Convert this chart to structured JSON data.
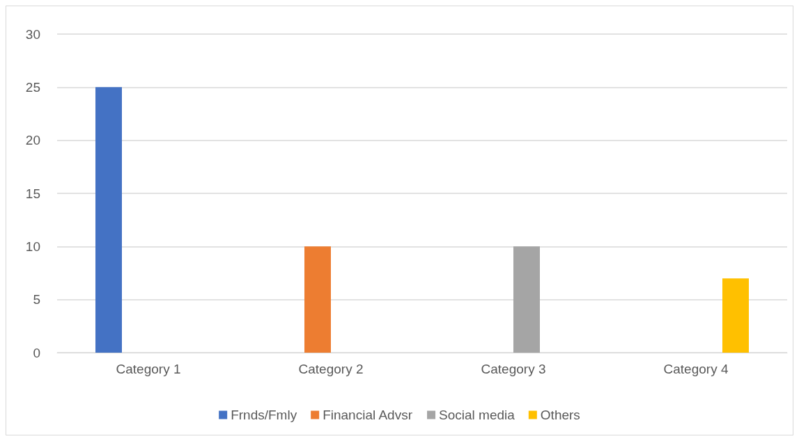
{
  "chart_data": {
    "type": "bar",
    "categories": [
      "Category 1",
      "Category 2",
      "Category 3",
      "Category 4"
    ],
    "series": [
      {
        "name": "Frnds/Fmly",
        "color": "#4472c4",
        "values": [
          25,
          null,
          null,
          null
        ]
      },
      {
        "name": "Financial Advsr",
        "color": "#ed7d31",
        "values": [
          null,
          10,
          null,
          null
        ]
      },
      {
        "name": "Social media",
        "color": "#a5a5a5",
        "values": [
          null,
          null,
          10,
          null
        ]
      },
      {
        "name": "Others",
        "color": "#ffc000",
        "values": [
          null,
          null,
          null,
          7
        ]
      }
    ],
    "ylim": [
      0,
      30
    ],
    "yticks": [
      0,
      5,
      10,
      15,
      20,
      25,
      30
    ],
    "grid": "y",
    "legend": "bottom"
  }
}
